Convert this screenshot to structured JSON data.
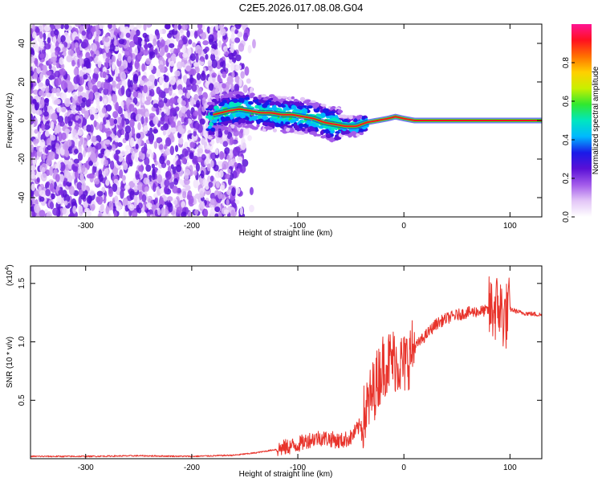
{
  "title": "C2E5.2026.017.08.08.G04",
  "chart_data": [
    {
      "type": "heatmap",
      "xlabel": "Height of straight line (km)",
      "ylabel": "Frequency (Hz)",
      "xlim": [
        -352,
        130
      ],
      "ylim": [
        -50,
        50
      ],
      "xticks": [
        -300,
        -200,
        -100,
        0,
        100
      ],
      "yticks": [
        -40,
        -20,
        0,
        20,
        40
      ],
      "colorbar": {
        "label": "Normalized spectral amplitude",
        "range": [
          0.0,
          1.0
        ],
        "ticks": [
          0.0,
          0.2,
          0.4,
          0.6,
          0.8
        ],
        "colors": [
          "#ffffff",
          "#e3c6f7",
          "#a35bea",
          "#5a10d6",
          "#1a1ae8",
          "#00b8ff",
          "#00e6c0",
          "#30e830",
          "#c8f000",
          "#ffd000",
          "#ff7000",
          "#ff1020",
          "#ff1493"
        ]
      },
      "centerline": {
        "x": [
          -180,
          -165,
          -155,
          -145,
          -135,
          -125,
          -115,
          -105,
          -95,
          -85,
          -75,
          -65,
          -55,
          -45,
          -35,
          -25,
          -15,
          -8,
          0,
          10,
          50,
          90,
          130
        ],
        "freq": [
          3,
          5,
          6,
          5,
          4,
          4,
          3,
          3,
          2,
          1,
          -1,
          -2,
          -3,
          -3,
          -1,
          0,
          1,
          2,
          1,
          0,
          0,
          0,
          0
        ]
      }
    },
    {
      "type": "line",
      "xlabel": "Height of straight line (km)",
      "ylabel": "SNR (10 * v/v)",
      "scale_label": "(x10",
      "scale_exp": "4",
      "xlim": [
        -352,
        130
      ],
      "ylim": [
        0,
        1.65
      ],
      "xticks": [
        -300,
        -200,
        -100,
        0,
        100
      ],
      "yticks": [
        0.5,
        1.0,
        1.5
      ],
      "ytick_labels": [
        "0.5",
        "1.0",
        "1.5"
      ],
      "color": "#e8332b",
      "series": [
        {
          "name": "SNR",
          "x": [
            -352,
            -300,
            -250,
            -200,
            -160,
            -140,
            -120,
            -100,
            -90,
            -80,
            -70,
            -60,
            -50,
            -40,
            -30,
            -20,
            -10,
            0,
            10,
            20,
            30,
            40,
            50,
            60,
            70,
            80,
            90,
            95,
            100,
            110,
            130
          ],
          "values": [
            0.02,
            0.02,
            0.025,
            0.02,
            0.03,
            0.05,
            0.08,
            0.12,
            0.16,
            0.18,
            0.17,
            0.15,
            0.18,
            0.3,
            0.55,
            0.8,
            0.85,
            0.8,
            0.95,
            1.05,
            1.15,
            1.2,
            1.23,
            1.25,
            1.26,
            1.27,
            1.3,
            1.2,
            1.28,
            1.25,
            1.23
          ]
        }
      ]
    }
  ]
}
